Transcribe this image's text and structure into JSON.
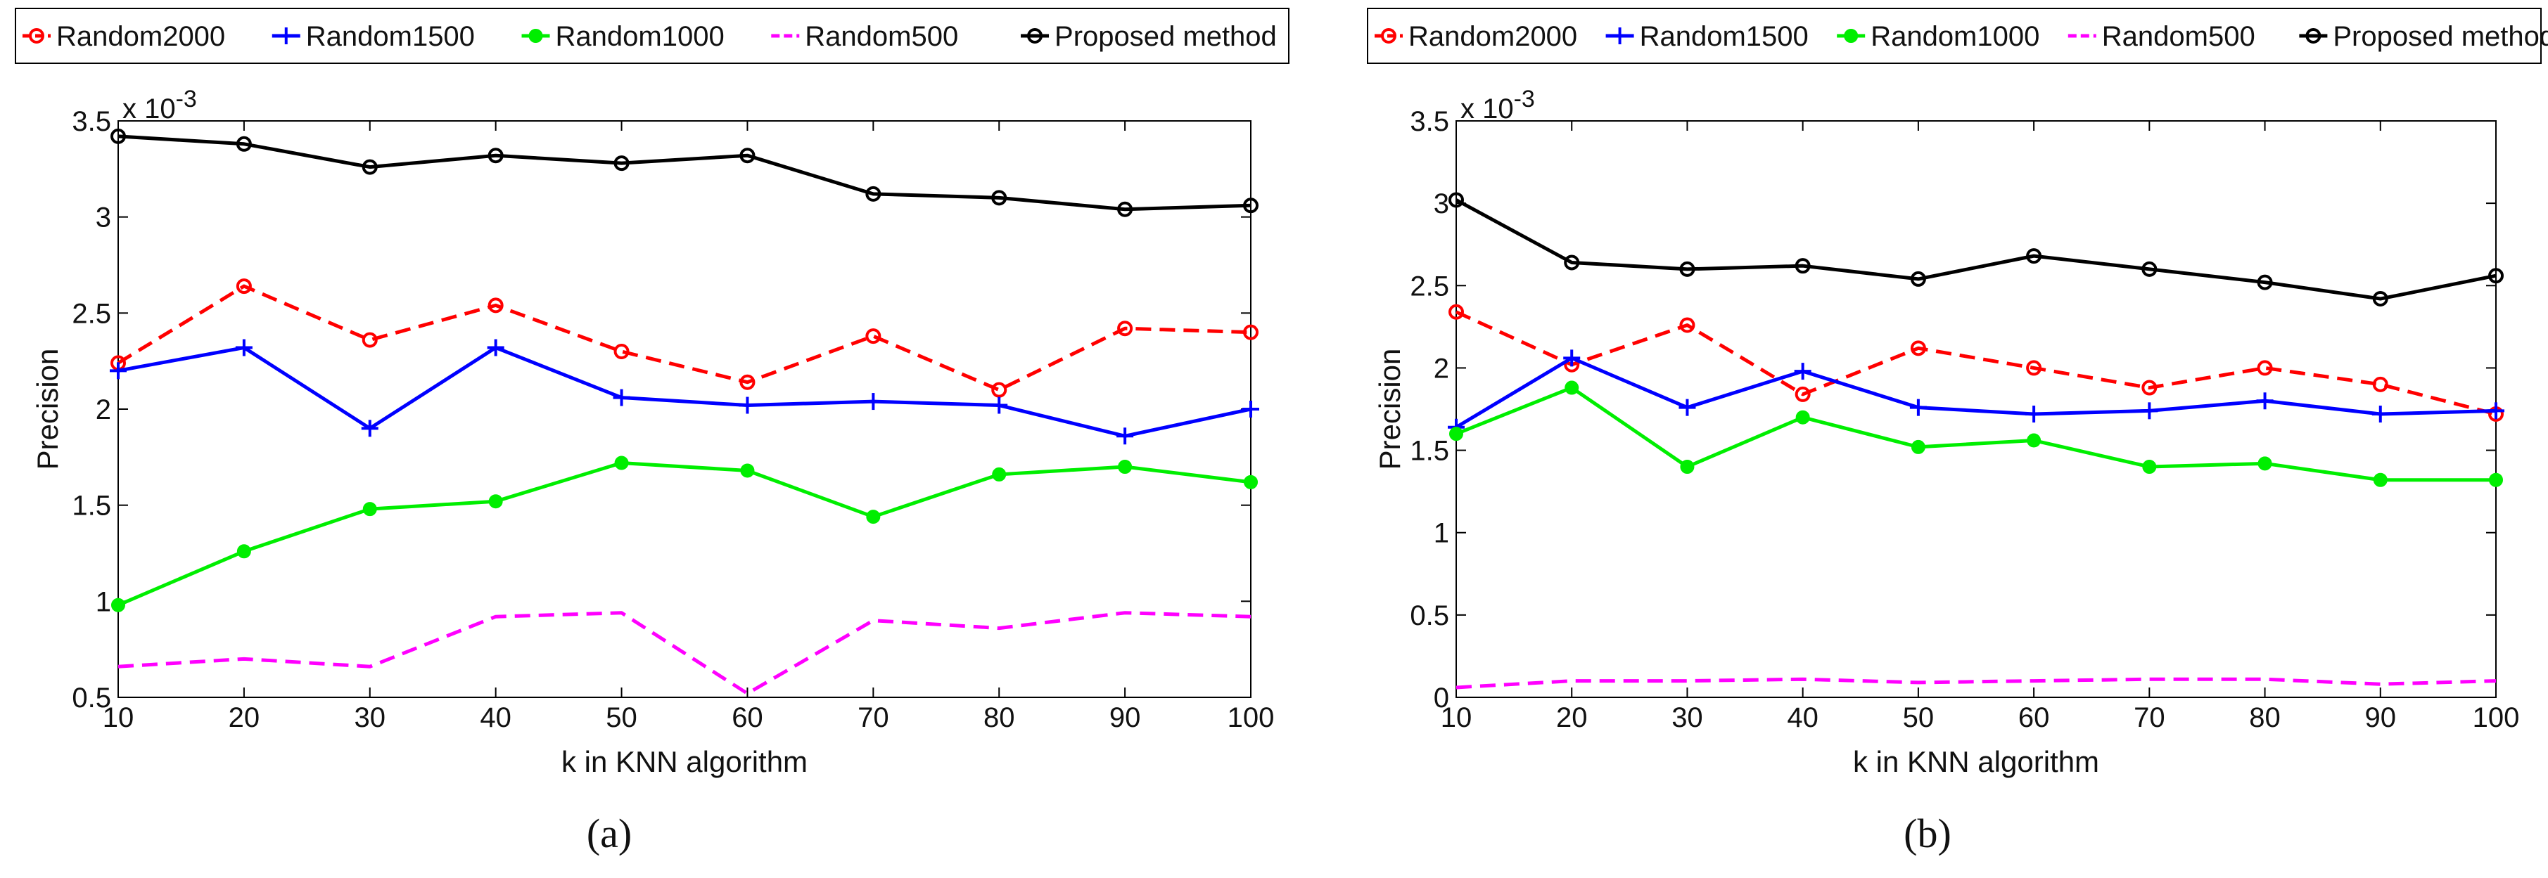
{
  "chart_data": [
    {
      "type": "line",
      "panel_label": "(a)",
      "xlabel": "k in KNN algorithm",
      "ylabel": "Precision",
      "y_multiplier_label": "x 10",
      "y_multiplier_exponent": "-3",
      "x": [
        10,
        20,
        30,
        40,
        50,
        60,
        70,
        80,
        90,
        100
      ],
      "xlim": [
        10,
        100
      ],
      "ylim": [
        0.5,
        3.5
      ],
      "xticks": [
        "10",
        "20",
        "30",
        "40",
        "50",
        "60",
        "70",
        "80",
        "90",
        "100"
      ],
      "yticks": [
        0.5,
        1,
        1.5,
        2,
        2.5,
        3,
        3.5
      ],
      "ytick_labels": [
        "0.5",
        "1",
        "1.5",
        "2",
        "2.5",
        "3",
        "3.5"
      ],
      "series": [
        {
          "name": "Random2000",
          "color": "#ff0000",
          "dash": "dashed",
          "marker": "circle",
          "values": [
            2.24,
            2.64,
            2.36,
            2.54,
            2.3,
            2.14,
            2.38,
            2.1,
            2.42,
            2.4
          ]
        },
        {
          "name": "Random1500",
          "color": "#0000ff",
          "dash": "solid",
          "marker": "plus",
          "values": [
            2.2,
            2.32,
            1.9,
            2.32,
            2.06,
            2.02,
            2.04,
            2.02,
            1.86,
            2.0
          ]
        },
        {
          "name": "Random1000",
          "color": "#00ee00",
          "dash": "solid",
          "marker": "dot",
          "values": [
            0.98,
            1.26,
            1.48,
            1.52,
            1.72,
            1.68,
            1.44,
            1.66,
            1.7,
            1.62
          ]
        },
        {
          "name": "Random500",
          "color": "#ff00ff",
          "dash": "dashed",
          "marker": "none",
          "values": [
            0.66,
            0.7,
            0.66,
            0.92,
            0.94,
            0.52,
            0.9,
            0.86,
            0.94,
            0.92
          ]
        },
        {
          "name": "Proposed method",
          "color": "#000000",
          "dash": "solid",
          "marker": "circle",
          "values": [
            3.42,
            3.38,
            3.26,
            3.32,
            3.28,
            3.32,
            3.12,
            3.1,
            3.04,
            3.06
          ]
        }
      ]
    },
    {
      "type": "line",
      "panel_label": "(b)",
      "xlabel": "k in KNN algorithm",
      "ylabel": "Precision",
      "y_multiplier_label": "x 10",
      "y_multiplier_exponent": "-3",
      "x": [
        10,
        20,
        30,
        40,
        50,
        60,
        70,
        80,
        90,
        100
      ],
      "xlim": [
        10,
        100
      ],
      "ylim": [
        0,
        3.5
      ],
      "xticks": [
        "10",
        "20",
        "30",
        "40",
        "50",
        "60",
        "70",
        "80",
        "90",
        "100"
      ],
      "yticks": [
        0,
        0.5,
        1,
        1.5,
        2,
        2.5,
        3,
        3.5
      ],
      "ytick_labels": [
        "0",
        "0.5",
        "1",
        "1.5",
        "2",
        "2.5",
        "3",
        "3.5"
      ],
      "series": [
        {
          "name": "Random2000",
          "color": "#ff0000",
          "dash": "dashed",
          "marker": "circle",
          "values": [
            2.34,
            2.02,
            2.26,
            1.84,
            2.12,
            2.0,
            1.88,
            2.0,
            1.9,
            1.72
          ]
        },
        {
          "name": "Random1500",
          "color": "#0000ff",
          "dash": "solid",
          "marker": "plus",
          "values": [
            1.64,
            2.06,
            1.76,
            1.98,
            1.76,
            1.72,
            1.74,
            1.8,
            1.72,
            1.74
          ]
        },
        {
          "name": "Random1000",
          "color": "#00ee00",
          "dash": "solid",
          "marker": "dot",
          "values": [
            1.6,
            1.88,
            1.4,
            1.7,
            1.52,
            1.56,
            1.4,
            1.42,
            1.32,
            1.32
          ]
        },
        {
          "name": "Random500",
          "color": "#ff00ff",
          "dash": "dashed",
          "marker": "none",
          "values": [
            0.06,
            0.1,
            0.1,
            0.11,
            0.09,
            0.1,
            0.11,
            0.11,
            0.08,
            0.1
          ]
        },
        {
          "name": "Proposed method",
          "color": "#000000",
          "dash": "solid",
          "marker": "circle",
          "values": [
            3.02,
            2.64,
            2.6,
            2.62,
            2.54,
            2.68,
            2.6,
            2.52,
            2.42,
            2.56
          ]
        }
      ]
    }
  ]
}
